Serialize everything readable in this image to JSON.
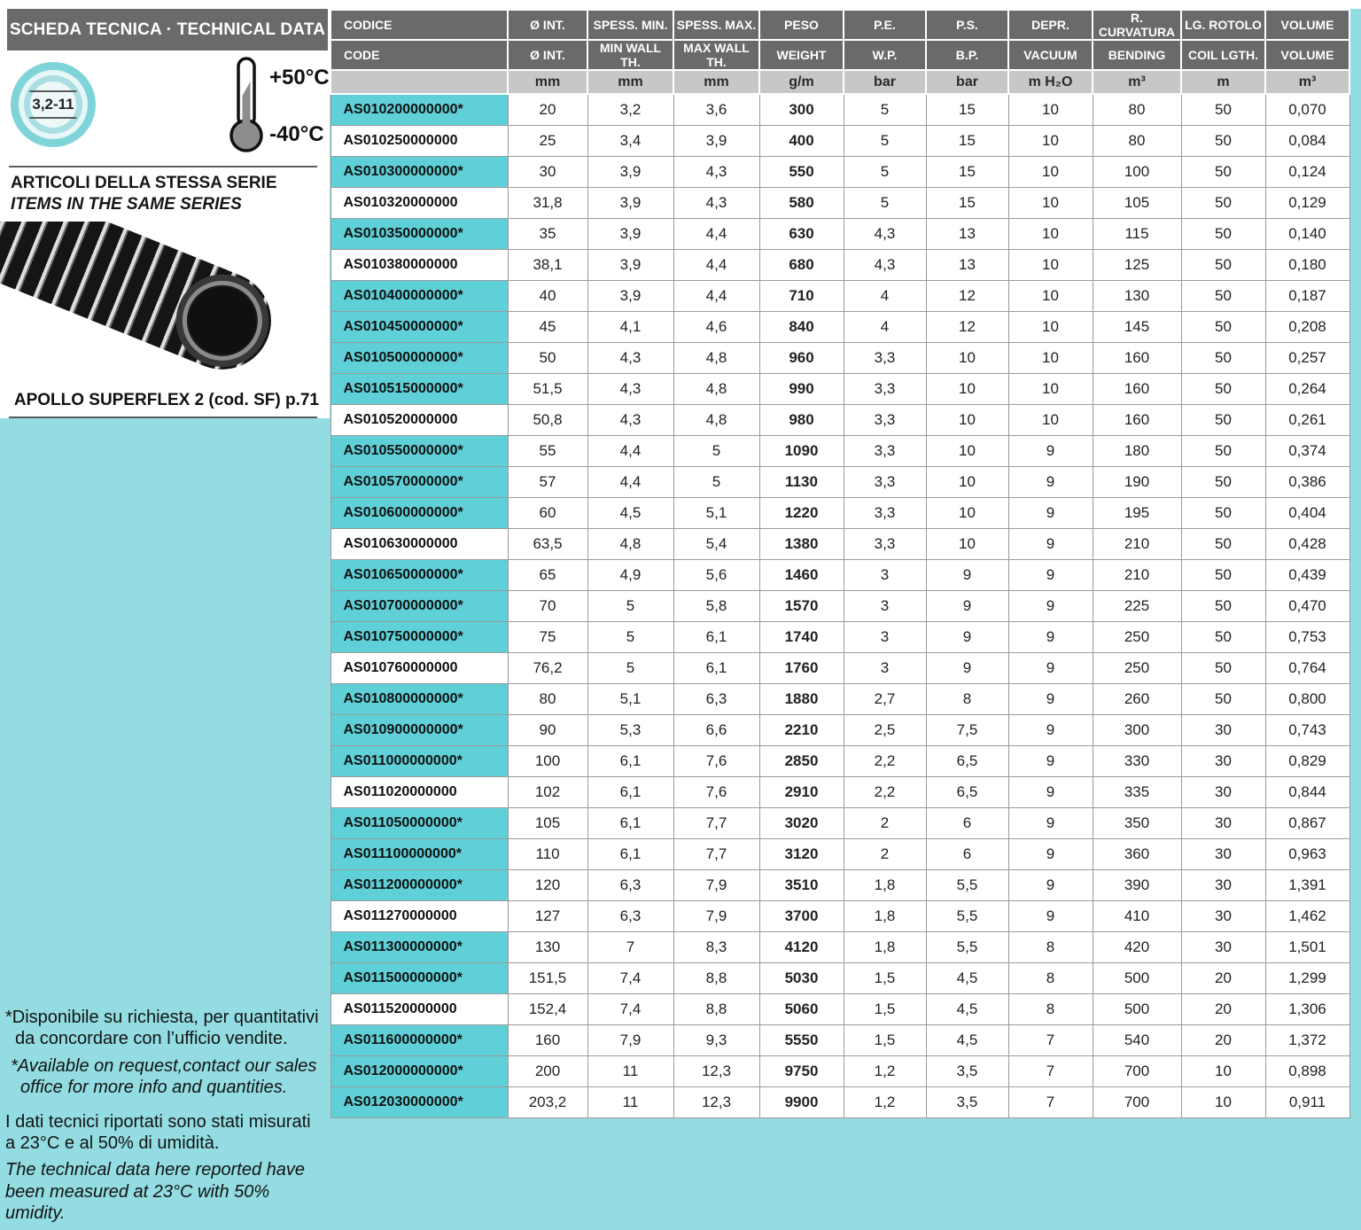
{
  "page": {
    "bg_color": "#92dce2",
    "accent_color": "#5fd0d7",
    "header_bar_color": "#6a6a6a",
    "units_row_color": "#c7c7c7"
  },
  "sidebar": {
    "title": "SCHEDA TECNICA · TECHNICAL DATA",
    "size_badge": "3,2-11",
    "temp_max": "+50°C",
    "temp_min": "-40°C",
    "series_title_it": "ARTICOLI DELLA STESSA SERIE",
    "series_title_en": "ITEMS IN THE SAME SERIES",
    "product_caption": "APOLLO SUPERFLEX 2  (cod. SF) p.71",
    "footnotes": {
      "note1_it": "*Disponibile su richiesta, per quantitativi da concordare con l’ufficio vendite.",
      "note1_en": "*Available on request,contact our sales office for more info and quantities.",
      "note2_it": "I dati tecnici riportati sono stati misurati a 23°C e al 50% di umidità.",
      "note2_en": "The technical data here reported have been measured at 23°C with 50% umidity."
    }
  },
  "table": {
    "header_row1": [
      "CODICE",
      "Ø INT.",
      "SPESS. MIN.",
      "SPESS. MAX.",
      "PESO",
      "P.E.",
      "P.S.",
      "DEPR.",
      "R. CURVATURA",
      "LG. ROTOLO",
      "VOLUME"
    ],
    "header_row2": [
      "CODE",
      "Ø INT.",
      "MIN WALL TH.",
      "MAX WALL TH.",
      "WEIGHT",
      "W.P.",
      "B.P.",
      "VACUUM",
      "BENDING",
      "COIL LGTH.",
      "VOLUME"
    ],
    "units": [
      "",
      "mm",
      "mm",
      "mm",
      "g/m",
      "bar",
      "bar",
      "m H₂O",
      "m³",
      "m",
      "m³"
    ],
    "rows": [
      {
        "code": "AS010200000000*",
        "values": [
          "20",
          "3,2",
          "3,6",
          "300",
          "5",
          "15",
          "10",
          "80",
          "50",
          "0,070"
        ]
      },
      {
        "code": "AS010250000000",
        "values": [
          "25",
          "3,4",
          "3,9",
          "400",
          "5",
          "15",
          "10",
          "80",
          "50",
          "0,084"
        ]
      },
      {
        "code": "AS010300000000*",
        "values": [
          "30",
          "3,9",
          "4,3",
          "550",
          "5",
          "15",
          "10",
          "100",
          "50",
          "0,124"
        ]
      },
      {
        "code": "AS010320000000",
        "values": [
          "31,8",
          "3,9",
          "4,3",
          "580",
          "5",
          "15",
          "10",
          "105",
          "50",
          "0,129"
        ]
      },
      {
        "code": "AS010350000000*",
        "values": [
          "35",
          "3,9",
          "4,4",
          "630",
          "4,3",
          "13",
          "10",
          "115",
          "50",
          "0,140"
        ]
      },
      {
        "code": "AS010380000000",
        "values": [
          "38,1",
          "3,9",
          "4,4",
          "680",
          "4,3",
          "13",
          "10",
          "125",
          "50",
          "0,180"
        ]
      },
      {
        "code": "AS010400000000*",
        "values": [
          "40",
          "3,9",
          "4,4",
          "710",
          "4",
          "12",
          "10",
          "130",
          "50",
          "0,187"
        ]
      },
      {
        "code": "AS010450000000*",
        "values": [
          "45",
          "4,1",
          "4,6",
          "840",
          "4",
          "12",
          "10",
          "145",
          "50",
          "0,208"
        ]
      },
      {
        "code": "AS010500000000*",
        "values": [
          "50",
          "4,3",
          "4,8",
          "960",
          "3,3",
          "10",
          "10",
          "160",
          "50",
          "0,257"
        ]
      },
      {
        "code": "AS010515000000*",
        "values": [
          "51,5",
          "4,3",
          "4,8",
          "990",
          "3,3",
          "10",
          "10",
          "160",
          "50",
          "0,264"
        ]
      },
      {
        "code": "AS010520000000",
        "values": [
          "50,8",
          "4,3",
          "4,8",
          "980",
          "3,3",
          "10",
          "10",
          "160",
          "50",
          "0,261"
        ]
      },
      {
        "code": "AS010550000000*",
        "values": [
          "55",
          "4,4",
          "5",
          "1090",
          "3,3",
          "10",
          "9",
          "180",
          "50",
          "0,374"
        ]
      },
      {
        "code": "AS010570000000*",
        "values": [
          "57",
          "4,4",
          "5",
          "1130",
          "3,3",
          "10",
          "9",
          "190",
          "50",
          "0,386"
        ]
      },
      {
        "code": "AS010600000000*",
        "values": [
          "60",
          "4,5",
          "5,1",
          "1220",
          "3,3",
          "10",
          "9",
          "195",
          "50",
          "0,404"
        ]
      },
      {
        "code": "AS010630000000",
        "values": [
          "63,5",
          "4,8",
          "5,4",
          "1380",
          "3,3",
          "10",
          "9",
          "210",
          "50",
          "0,428"
        ]
      },
      {
        "code": "AS010650000000*",
        "values": [
          "65",
          "4,9",
          "5,6",
          "1460",
          "3",
          "9",
          "9",
          "210",
          "50",
          "0,439"
        ]
      },
      {
        "code": "AS010700000000*",
        "values": [
          "70",
          "5",
          "5,8",
          "1570",
          "3",
          "9",
          "9",
          "225",
          "50",
          "0,470"
        ]
      },
      {
        "code": "AS010750000000*",
        "values": [
          "75",
          "5",
          "6,1",
          "1740",
          "3",
          "9",
          "9",
          "250",
          "50",
          "0,753"
        ]
      },
      {
        "code": "AS010760000000",
        "values": [
          "76,2",
          "5",
          "6,1",
          "1760",
          "3",
          "9",
          "9",
          "250",
          "50",
          "0,764"
        ]
      },
      {
        "code": "AS010800000000*",
        "values": [
          "80",
          "5,1",
          "6,3",
          "1880",
          "2,7",
          "8",
          "9",
          "260",
          "50",
          "0,800"
        ]
      },
      {
        "code": "AS010900000000*",
        "values": [
          "90",
          "5,3",
          "6,6",
          "2210",
          "2,5",
          "7,5",
          "9",
          "300",
          "30",
          "0,743"
        ]
      },
      {
        "code": "AS011000000000*",
        "values": [
          "100",
          "6,1",
          "7,6",
          "2850",
          "2,2",
          "6,5",
          "9",
          "330",
          "30",
          "0,829"
        ]
      },
      {
        "code": "AS011020000000",
        "values": [
          "102",
          "6,1",
          "7,6",
          "2910",
          "2,2",
          "6,5",
          "9",
          "335",
          "30",
          "0,844"
        ]
      },
      {
        "code": "AS011050000000*",
        "values": [
          "105",
          "6,1",
          "7,7",
          "3020",
          "2",
          "6",
          "9",
          "350",
          "30",
          "0,867"
        ]
      },
      {
        "code": "AS011100000000*",
        "values": [
          "110",
          "6,1",
          "7,7",
          "3120",
          "2",
          "6",
          "9",
          "360",
          "30",
          "0,963"
        ]
      },
      {
        "code": "AS011200000000*",
        "values": [
          "120",
          "6,3",
          "7,9",
          "3510",
          "1,8",
          "5,5",
          "9",
          "390",
          "30",
          "1,391"
        ]
      },
      {
        "code": "AS011270000000",
        "values": [
          "127",
          "6,3",
          "7,9",
          "3700",
          "1,8",
          "5,5",
          "9",
          "410",
          "30",
          "1,462"
        ]
      },
      {
        "code": "AS011300000000*",
        "values": [
          "130",
          "7",
          "8,3",
          "4120",
          "1,8",
          "5,5",
          "8",
          "420",
          "30",
          "1,501"
        ]
      },
      {
        "code": "AS011500000000*",
        "values": [
          "151,5",
          "7,4",
          "8,8",
          "5030",
          "1,5",
          "4,5",
          "8",
          "500",
          "20",
          "1,299"
        ]
      },
      {
        "code": "AS011520000000",
        "values": [
          "152,4",
          "7,4",
          "8,8",
          "5060",
          "1,5",
          "4,5",
          "8",
          "500",
          "20",
          "1,306"
        ]
      },
      {
        "code": "AS011600000000*",
        "values": [
          "160",
          "7,9",
          "9,3",
          "5550",
          "1,5",
          "4,5",
          "7",
          "540",
          "20",
          "1,372"
        ]
      },
      {
        "code": "AS012000000000*",
        "values": [
          "200",
          "11",
          "12,3",
          "9750",
          "1,2",
          "3,5",
          "7",
          "700",
          "10",
          "0,898"
        ]
      },
      {
        "code": "AS012030000000*",
        "values": [
          "203,2",
          "11",
          "12,3",
          "9900",
          "1,2",
          "3,5",
          "7",
          "700",
          "10",
          "0,911"
        ]
      }
    ]
  }
}
